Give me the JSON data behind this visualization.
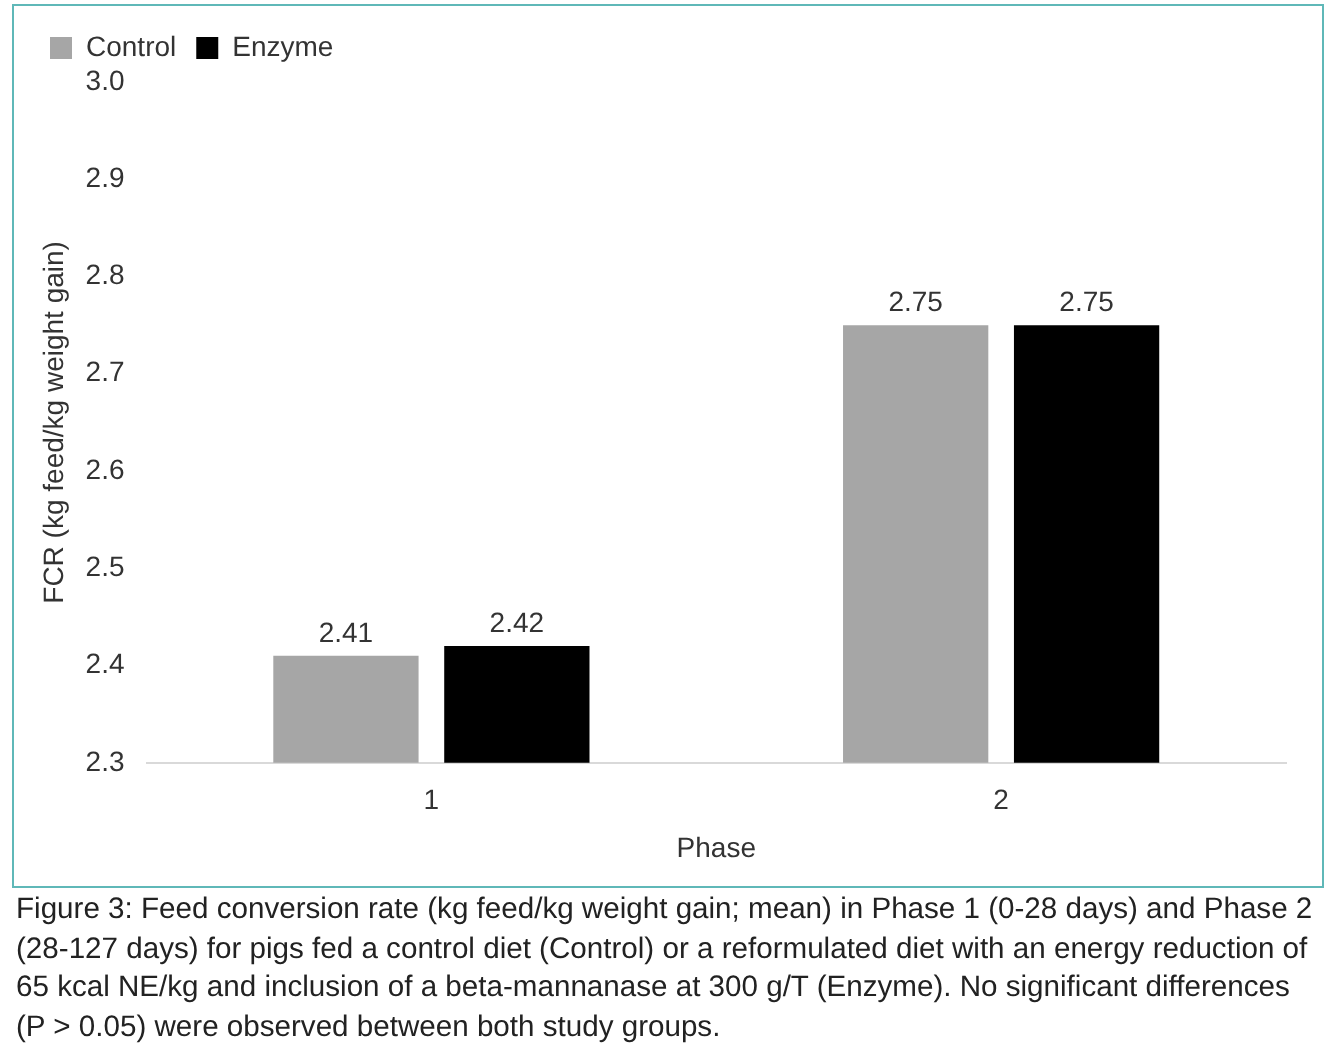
{
  "chart_data": {
    "type": "bar",
    "categories": [
      "1",
      "2"
    ],
    "series": [
      {
        "name": "Control",
        "color": "#a6a6a6",
        "values": [
          2.41,
          2.75
        ]
      },
      {
        "name": "Enzyme",
        "color": "#000000",
        "values": [
          2.42,
          2.75
        ]
      }
    ],
    "xlabel": "Phase",
    "ylabel": "FCR (kg feed/kg weight gain)",
    "ylim": [
      2.3,
      3.0
    ],
    "yticks": [
      2.3,
      2.4,
      2.5,
      2.6,
      2.7,
      2.8,
      2.9,
      {
        "value": 3.0,
        "label": "3.0"
      }
    ],
    "grid": false,
    "legend": "top left",
    "data_labels": true,
    "annotations": [
      "Figure 3: Feed conversion rate (kg feed/kg weight gain; mean) in Phase 1 (0-28 days) and Phase 2 (28-127 days) for pigs fed a control diet (Control) or a reformulated diet with an energy reduction of 65 kcal NE/kg and inclusion of a beta-mannanase at 300 g/T (Enzyme). No significant differences (P > 0.05) were observed between both study groups."
    ]
  }
}
